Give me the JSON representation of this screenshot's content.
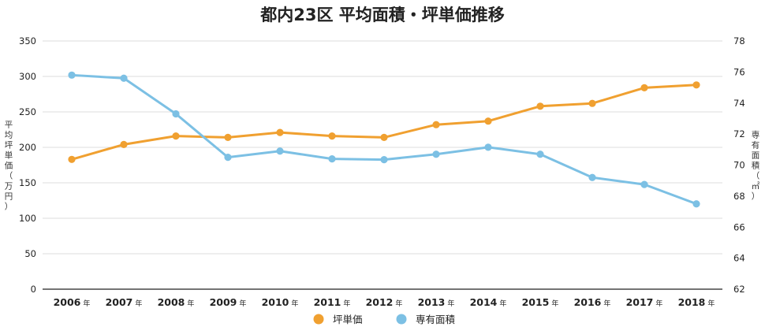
{
  "chart_data": {
    "type": "line",
    "title": "都内23区 平均面積・坪単価推移",
    "categories": [
      "2006",
      "2007",
      "2008",
      "2009",
      "2010",
      "2011",
      "2012",
      "2013",
      "2014",
      "2015",
      "2016",
      "2017",
      "2018"
    ],
    "category_suffix": "年",
    "series": [
      {
        "name": "坪単価",
        "axis": "left",
        "color": "#F0A030",
        "values": [
          183,
          204,
          216,
          214,
          221,
          216,
          214,
          232,
          237,
          258,
          262,
          284,
          288
        ]
      },
      {
        "name": "専有面積",
        "axis": "right",
        "color": "#7CC0E4",
        "values": [
          75.8,
          75.6,
          73.3,
          70.5,
          70.9,
          70.4,
          70.35,
          70.7,
          71.15,
          70.7,
          69.2,
          68.75,
          67.5
        ]
      }
    ],
    "ylabel_left": "平均坪単価（万円）",
    "ylabel_right": "専有面積（㎡）",
    "ylim_left": [
      0,
      350
    ],
    "yticks_left": [
      "0",
      "50",
      "100",
      "150",
      "200",
      "250",
      "300",
      "350"
    ],
    "ylim_right": [
      62,
      78
    ],
    "yticks_right": [
      "62",
      "64",
      "66",
      "68",
      "70",
      "72",
      "74",
      "76",
      "78"
    ],
    "grid": true,
    "legend_position": "bottom-center"
  }
}
